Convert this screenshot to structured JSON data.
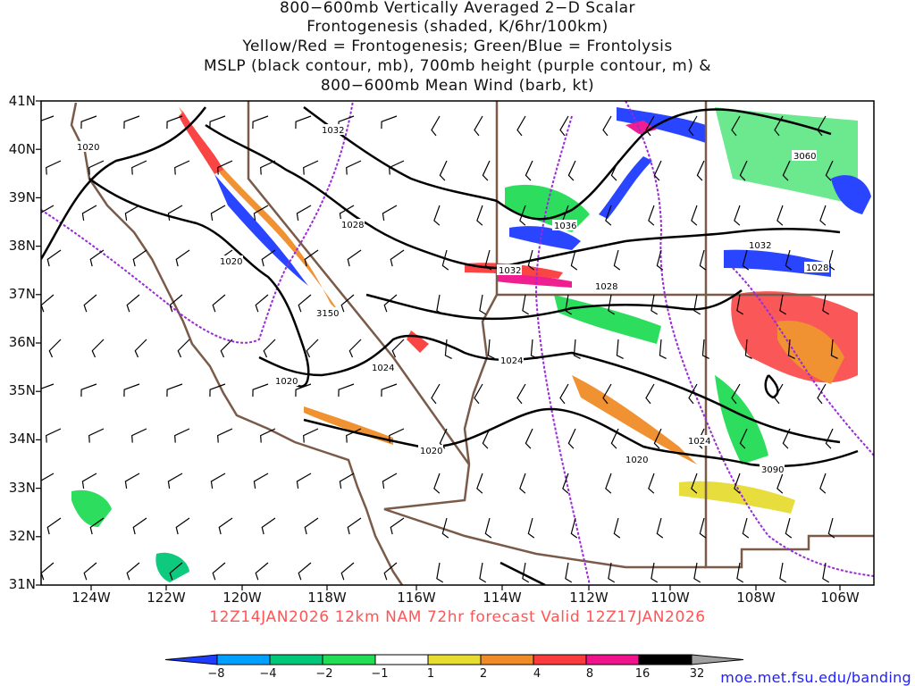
{
  "title_lines": [
    "800−600mb Vertically Averaged 2−D Scalar",
    "Frontogenesis (shaded, K/6hr/100km)",
    "Yellow/Red = Frontogenesis;  Green/Blue = Frontolysis",
    "MSLP (black contour, mb), 700mb height (purple contour, m) &",
    "800−600mb Mean Wind (barb, kt)"
  ],
  "subtitle": "12Z14JAN2026 12km NAM 72hr forecast Valid 12Z17JAN2026",
  "credit": "moe.met.fsu.edu/banding",
  "lat_labels": [
    "41N",
    "40N",
    "39N",
    "38N",
    "37N",
    "36N",
    "35N",
    "34N",
    "33N",
    "32N",
    "31N"
  ],
  "lon_labels": [
    "124W",
    "122W",
    "120W",
    "118W",
    "116W",
    "114W",
    "112W",
    "110W",
    "108W",
    "106W"
  ],
  "colorbar": {
    "ticks": [
      "−8",
      "−4",
      "−2",
      "−1",
      "1",
      "2",
      "4",
      "8",
      "16",
      "32"
    ],
    "colors": [
      "#1e3cff",
      "#00a0ff",
      "#00c878",
      "#22dc55",
      "#ffffff",
      "#e6dc32",
      "#f08c28",
      "#fa3c3c",
      "#f0148c",
      "#000000",
      "#a0a0a0"
    ]
  },
  "mslp_labels": [
    "1032",
    "1020",
    "1028",
    "1036",
    "1032",
    "1028",
    "1032",
    "1028",
    "1020",
    "1024",
    "1024",
    "1020",
    "1020",
    "1024",
    "1020"
  ],
  "height_labels": [
    "3060",
    "3150",
    "3090"
  ]
}
